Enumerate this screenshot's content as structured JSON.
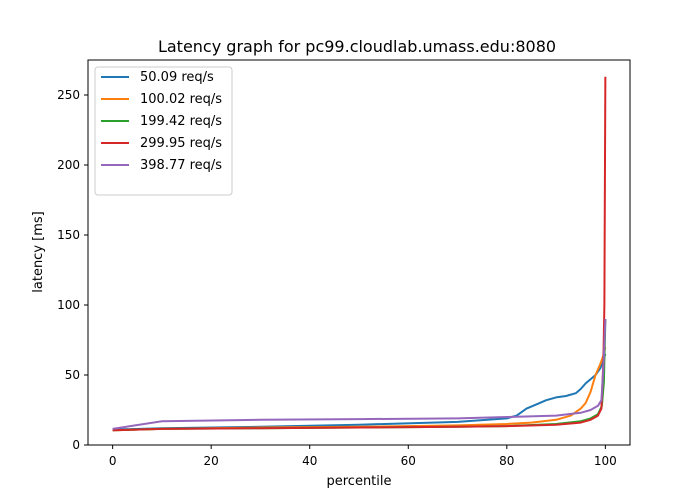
{
  "chart_data": {
    "type": "line",
    "title": "Latency graph for pc99.cloudlab.umass.edu:8080",
    "xlabel": "percentile",
    "ylabel": "latency [ms]",
    "xlim": [
      -5,
      105
    ],
    "ylim": [
      0,
      275
    ],
    "xticks": [
      0,
      20,
      40,
      60,
      80,
      100
    ],
    "yticks": [
      0,
      50,
      100,
      150,
      200,
      250
    ],
    "grid": false,
    "legend_position": "top-left",
    "series": [
      {
        "name": "50.09 req/s",
        "color": "#1f77b4",
        "points": [
          [
            0,
            11
          ],
          [
            10,
            12
          ],
          [
            30,
            13
          ],
          [
            50,
            14.5
          ],
          [
            70,
            16.5
          ],
          [
            80,
            19
          ],
          [
            82,
            21
          ],
          [
            84,
            26
          ],
          [
            86,
            29
          ],
          [
            88,
            32
          ],
          [
            90,
            34
          ],
          [
            92,
            35
          ],
          [
            94,
            37
          ],
          [
            95,
            40
          ],
          [
            96,
            44
          ],
          [
            97,
            47
          ],
          [
            98,
            50
          ],
          [
            99,
            55
          ],
          [
            99.5,
            60
          ],
          [
            100,
            65
          ]
        ]
      },
      {
        "name": "100.02 req/s",
        "color": "#ff7f0e",
        "points": [
          [
            0,
            10.5
          ],
          [
            10,
            11.5
          ],
          [
            30,
            12.5
          ],
          [
            50,
            13
          ],
          [
            70,
            14
          ],
          [
            80,
            15
          ],
          [
            85,
            16
          ],
          [
            90,
            18
          ],
          [
            93,
            21
          ],
          [
            95,
            26
          ],
          [
            96,
            30
          ],
          [
            97,
            38
          ],
          [
            98,
            50
          ],
          [
            99,
            58
          ],
          [
            99.5,
            63
          ],
          [
            100,
            70
          ]
        ]
      },
      {
        "name": "199.42 req/s",
        "color": "#2ca02c",
        "points": [
          [
            0,
            10.5
          ],
          [
            10,
            11.5
          ],
          [
            30,
            12
          ],
          [
            50,
            12.5
          ],
          [
            70,
            13
          ],
          [
            80,
            13.5
          ],
          [
            90,
            15
          ],
          [
            95,
            17
          ],
          [
            97,
            19
          ],
          [
            98.5,
            22
          ],
          [
            99.3,
            28
          ],
          [
            99.7,
            45
          ],
          [
            100,
            90
          ]
        ]
      },
      {
        "name": "299.95 req/s",
        "color": "#d62728",
        "points": [
          [
            0,
            10.5
          ],
          [
            10,
            11.5
          ],
          [
            30,
            12
          ],
          [
            50,
            12.5
          ],
          [
            70,
            13
          ],
          [
            80,
            13.5
          ],
          [
            90,
            14.5
          ],
          [
            95,
            16
          ],
          [
            97,
            18
          ],
          [
            98.5,
            21
          ],
          [
            99.2,
            26
          ],
          [
            99.6,
            60
          ],
          [
            99.8,
            100
          ],
          [
            100,
            263
          ]
        ]
      },
      {
        "name": "398.77 req/s",
        "color": "#9467bd",
        "points": [
          [
            0,
            11.5
          ],
          [
            10,
            17
          ],
          [
            30,
            18
          ],
          [
            50,
            18.5
          ],
          [
            70,
            19
          ],
          [
            80,
            20
          ],
          [
            90,
            21
          ],
          [
            95,
            23
          ],
          [
            97,
            25
          ],
          [
            98.5,
            28
          ],
          [
            99.2,
            32
          ],
          [
            99.6,
            55
          ],
          [
            100,
            90
          ]
        ]
      }
    ]
  }
}
